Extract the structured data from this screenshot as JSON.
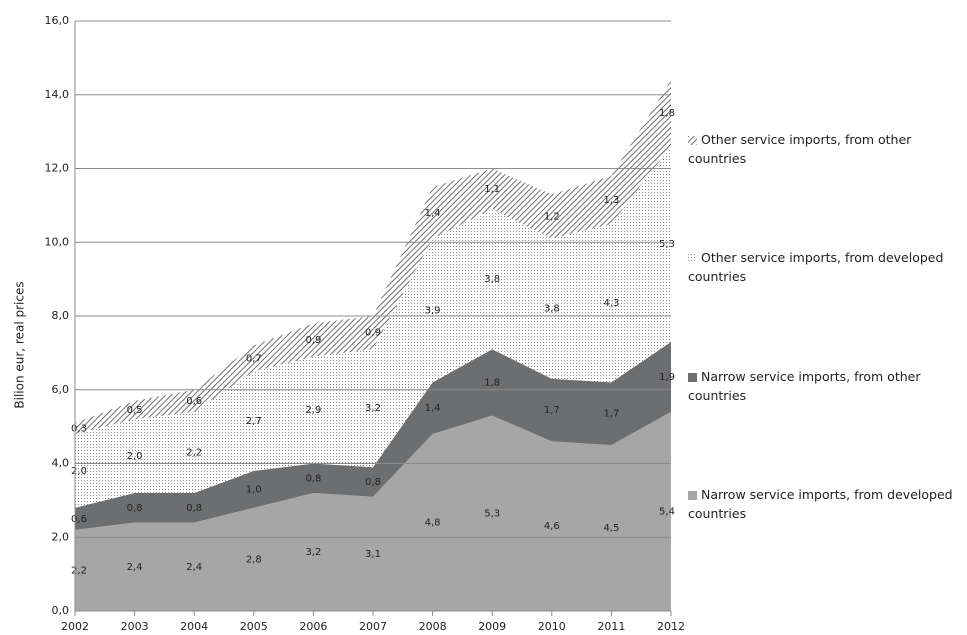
{
  "chart_data": {
    "type": "stacked-area",
    "y_label": "Bilion eur, real prices",
    "categories": [
      "2002",
      "2003",
      "2004",
      "2005",
      "2006",
      "2007",
      "2008",
      "2009",
      "2010",
      "2011",
      "2012"
    ],
    "series": [
      {
        "name": "Narrow service imports, from developed countries",
        "color": "#a6a6a6",
        "pattern": "solid",
        "values": [
          2.2,
          2.4,
          2.4,
          2.8,
          3.2,
          3.1,
          4.8,
          5.3,
          4.6,
          4.5,
          5.4
        ],
        "value_labels": [
          "2,2",
          "2,4",
          "2,4",
          "2,8",
          "3,2",
          "3,1",
          "4,8",
          "5,3",
          "4,6",
          "4,5",
          "5,4"
        ]
      },
      {
        "name": "Narrow service imports, from other countries",
        "color": "#6d6e70",
        "pattern": "solid",
        "values": [
          0.6,
          0.8,
          0.8,
          1.0,
          0.8,
          0.8,
          1.4,
          1.8,
          1.7,
          1.7,
          1.9
        ],
        "value_labels": [
          "0,6",
          "0,8",
          "0,8",
          "1,0",
          "0,8",
          "0,8",
          "1,4",
          "1,8",
          "1,7",
          "1,7",
          "1,9"
        ]
      },
      {
        "name": "Other service imports, from developed countries",
        "color": "#8a8a8a",
        "pattern": "dots",
        "values": [
          2.0,
          2.0,
          2.2,
          2.7,
          2.9,
          3.2,
          3.9,
          3.8,
          3.8,
          4.3,
          5.3
        ],
        "value_labels": [
          "2,0",
          "2,0",
          "2,2",
          "2,7",
          "2,9",
          "3,2",
          "3,9",
          "3,8",
          "3,8",
          "4,3",
          "5,3"
        ]
      },
      {
        "name": "Other service imports, from other countries",
        "color": "#6d6e70",
        "pattern": "hatch",
        "values": [
          0.3,
          0.5,
          0.6,
          0.7,
          0.9,
          0.9,
          1.4,
          1.1,
          1.2,
          1.3,
          1.8
        ],
        "value_labels": [
          "0,3",
          "0,5",
          "0,6",
          "0,7",
          "0,9",
          "0,9",
          "1,4",
          "1,1",
          "1,2",
          "1,3",
          "1,8"
        ]
      }
    ],
    "ylim": [
      0,
      16
    ],
    "yticks": [
      {
        "value": 0,
        "label": "0,0"
      },
      {
        "value": 2,
        "label": "2,0"
      },
      {
        "value": 4,
        "label": "4,0"
      },
      {
        "value": 6,
        "label": "6,0"
      },
      {
        "value": 8,
        "label": "8,0"
      },
      {
        "value": 10,
        "label": "10,0"
      },
      {
        "value": 12,
        "label": "12,0"
      },
      {
        "value": 14,
        "label": "14,0"
      },
      {
        "value": 16,
        "label": "16,0"
      }
    ],
    "grid": true,
    "legend": "right"
  }
}
